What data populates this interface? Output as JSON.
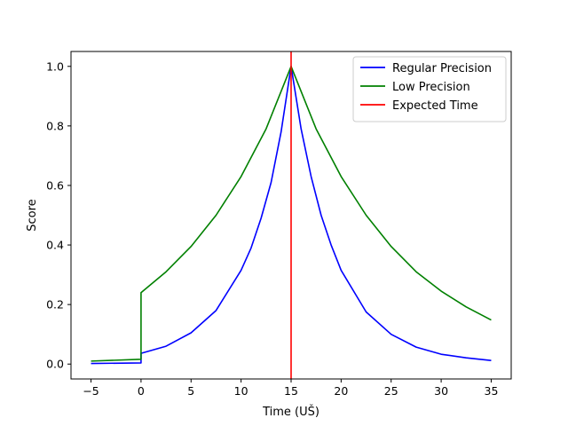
{
  "chart_data": {
    "type": "line",
    "title": "",
    "xlabel": "Time (UŠ)",
    "ylabel": "Score",
    "xlim": [
      -7,
      37
    ],
    "ylim": [
      -0.05,
      1.05
    ],
    "xticks": [
      -5,
      0,
      5,
      10,
      15,
      20,
      25,
      30,
      35
    ],
    "xtick_labels": [
      "−5",
      "0",
      "5",
      "10",
      "15",
      "20",
      "25",
      "30",
      "35"
    ],
    "yticks": [
      0.0,
      0.2,
      0.4,
      0.6,
      0.8,
      1.0
    ],
    "ytick_labels": [
      "0.0",
      "0.2",
      "0.4",
      "0.6",
      "0.8",
      "1.0"
    ],
    "grid": false,
    "legend_position": "top-right",
    "series": [
      {
        "name": "Regular Precision",
        "color": "#0000ff",
        "x": [
          -5,
          0,
          0,
          2.5,
          5,
          7.5,
          10,
          11,
          12,
          13,
          14,
          15,
          16,
          17,
          18,
          19,
          20,
          22.5,
          25,
          27.5,
          30,
          32.5,
          35
        ],
        "y": [
          0.002,
          0.004,
          0.036,
          0.06,
          0.105,
          0.18,
          0.315,
          0.39,
          0.49,
          0.61,
          0.78,
          1.0,
          0.79,
          0.63,
          0.5,
          0.4,
          0.315,
          0.175,
          0.1,
          0.057,
          0.033,
          0.021,
          0.012
        ]
      },
      {
        "name": "Low Precision",
        "color": "#008000",
        "x": [
          -5,
          0,
          0,
          2.5,
          5,
          7.5,
          10,
          12.5,
          15,
          17.5,
          20,
          22.5,
          25,
          27.5,
          30,
          32.5,
          35
        ],
        "y": [
          0.01,
          0.016,
          0.24,
          0.31,
          0.395,
          0.5,
          0.63,
          0.79,
          1.0,
          0.79,
          0.63,
          0.5,
          0.395,
          0.31,
          0.245,
          0.192,
          0.148
        ]
      }
    ],
    "vlines": [
      {
        "name": "Expected Time",
        "x": 15,
        "color": "#ff0000"
      }
    ]
  }
}
